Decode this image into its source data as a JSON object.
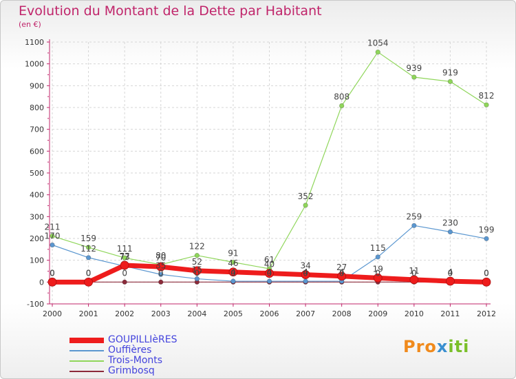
{
  "header": {
    "title": "Evolution du Montant de la Dette par Habitant",
    "subtitle": "(en €)"
  },
  "brand": {
    "logo_text": "Proxiti"
  },
  "colors": {
    "title": "#c0246a",
    "GOUPILLIèRES": "#ee1c1c",
    "Ouffières": "#5b97d0",
    "Trois-Monts": "#8fd65a",
    "Grimbosq": "#8b2a3a"
  },
  "chart_data": {
    "type": "line",
    "title": "Evolution du Montant de la Dette par Habitant",
    "ylabel": "(en €)",
    "xlabel": "",
    "x": [
      "2000",
      "2001",
      "2002",
      "2003",
      "2004",
      "2005",
      "2006",
      "2007",
      "2008",
      "2009",
      "2010",
      "2011",
      "2012"
    ],
    "ylim": [
      -100,
      1100
    ],
    "yticks": [
      -100,
      0,
      100,
      200,
      300,
      400,
      500,
      600,
      700,
      800,
      900,
      1000,
      1100
    ],
    "grid": true,
    "legend_position": "bottom-left",
    "series": [
      {
        "name": "GOUPILLIèRES",
        "color": "#ee1c1c",
        "width": 7,
        "values": [
          0,
          0,
          77,
          70,
          52,
          46,
          40,
          34,
          27,
          19,
          11,
          4,
          0
        ],
        "labels": [
          "0",
          "0",
          "77",
          "70",
          "52",
          "46",
          "40",
          "34",
          "27",
          "19",
          "11",
          "4",
          "0"
        ]
      },
      {
        "name": "Ouffières",
        "color": "#5b97d0",
        "width": 1.2,
        "values": [
          170,
          112,
          73,
          35,
          15,
          4,
          4,
          4,
          4,
          115,
          259,
          230,
          199
        ],
        "labels": [
          "170",
          "112",
          "73",
          "35",
          "15",
          "4",
          "4",
          "4",
          "4",
          "115",
          "259",
          "230",
          "199"
        ]
      },
      {
        "name": "Trois-Monts",
        "color": "#8fd65a",
        "width": 1.2,
        "values": [
          211,
          159,
          111,
          80,
          122,
          91,
          61,
          352,
          808,
          1054,
          939,
          919,
          812
        ],
        "labels": [
          "211",
          "159",
          "111",
          "80",
          "122",
          "91",
          "61",
          "352",
          "808",
          "1054",
          "939",
          "919",
          "812"
        ]
      },
      {
        "name": "Grimbosq",
        "color": "#8b2a3a",
        "width": 1.2,
        "values": [
          0,
          0,
          0,
          0,
          0,
          0,
          0,
          0,
          0,
          0,
          0,
          0,
          0
        ],
        "labels": [
          "0",
          "0",
          "0",
          "0",
          "0",
          "0",
          "0",
          "0",
          "0",
          "0",
          "0",
          "0",
          "0"
        ]
      }
    ]
  }
}
